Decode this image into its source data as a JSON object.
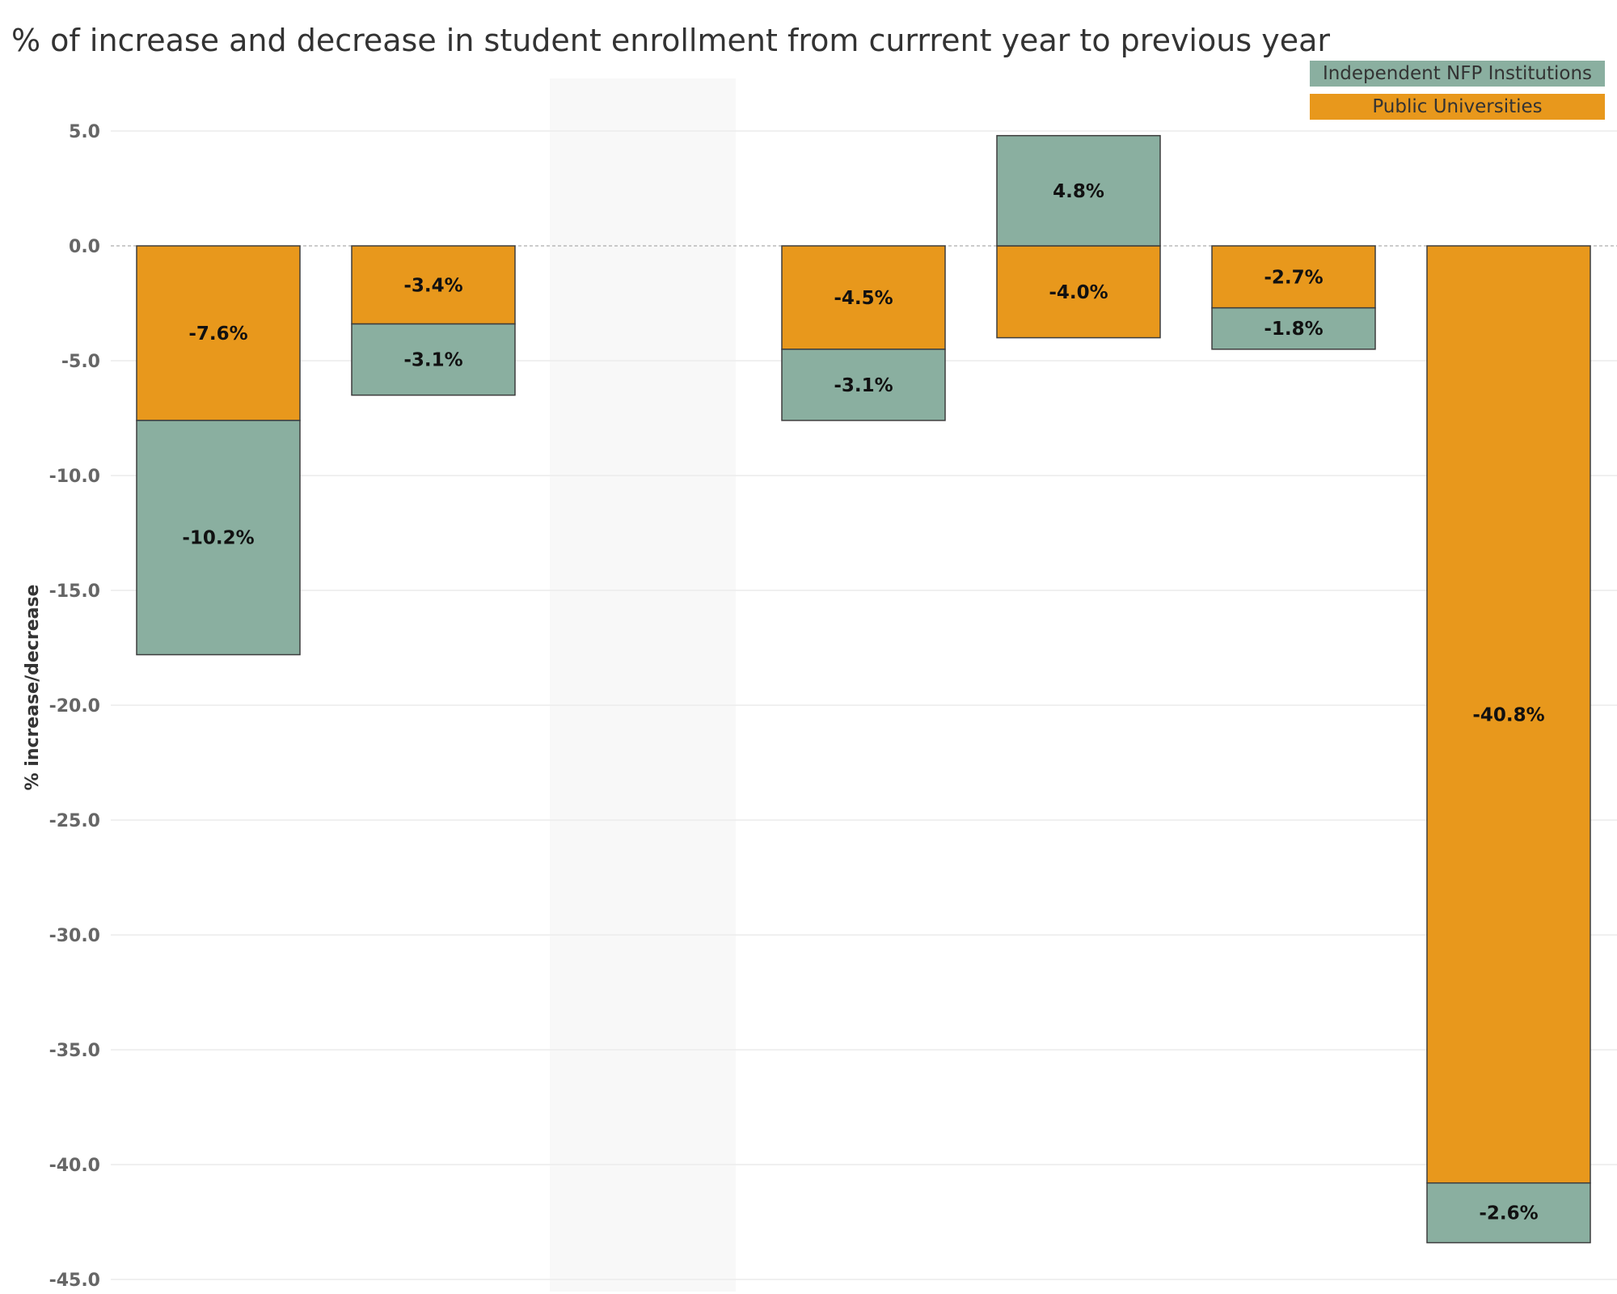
{
  "chart_data": {
    "type": "bar",
    "stacked": true,
    "title": "% of increase and decrease in student enrollment from currrent year to previous year",
    "ylabel": "% increase/decrease",
    "ylim": [
      -45,
      7
    ],
    "yticks": [
      "5.0",
      "0.0",
      "-5.0",
      "-10.0",
      "-15.0",
      "-20.0",
      "-25.0",
      "-30.0",
      "-35.0",
      "-40.0",
      "-45.0"
    ],
    "ytick_values": [
      5,
      0,
      -5,
      -10,
      -15,
      -20,
      -25,
      -30,
      -35,
      -40,
      -45
    ],
    "legend_position": "top-right",
    "grid": true,
    "series": [
      {
        "name": "Public Universities",
        "color": "#E8981C",
        "values": [
          -7.6,
          -3.4,
          null,
          -4.5,
          -4.0,
          -2.7,
          -40.8
        ],
        "labels": [
          "-7.6%",
          "-3.4%",
          "",
          "-4.5%",
          "-4.0%",
          "-2.7%",
          "-40.8%"
        ]
      },
      {
        "name": "Independent NFP Institutions",
        "color": "#8AAFA0",
        "values": [
          -10.2,
          -3.1,
          null,
          -3.1,
          4.8,
          -1.8,
          -2.6
        ],
        "labels": [
          "-10.2%",
          "-3.1%",
          "",
          "-3.1%",
          "4.8%",
          "-1.8%",
          "-2.6%"
        ]
      }
    ],
    "legend": [
      {
        "name": "Independent NFP Institutions",
        "color": "#8AAFA0"
      },
      {
        "name": "Public Universities",
        "color": "#E8981C"
      }
    ]
  }
}
